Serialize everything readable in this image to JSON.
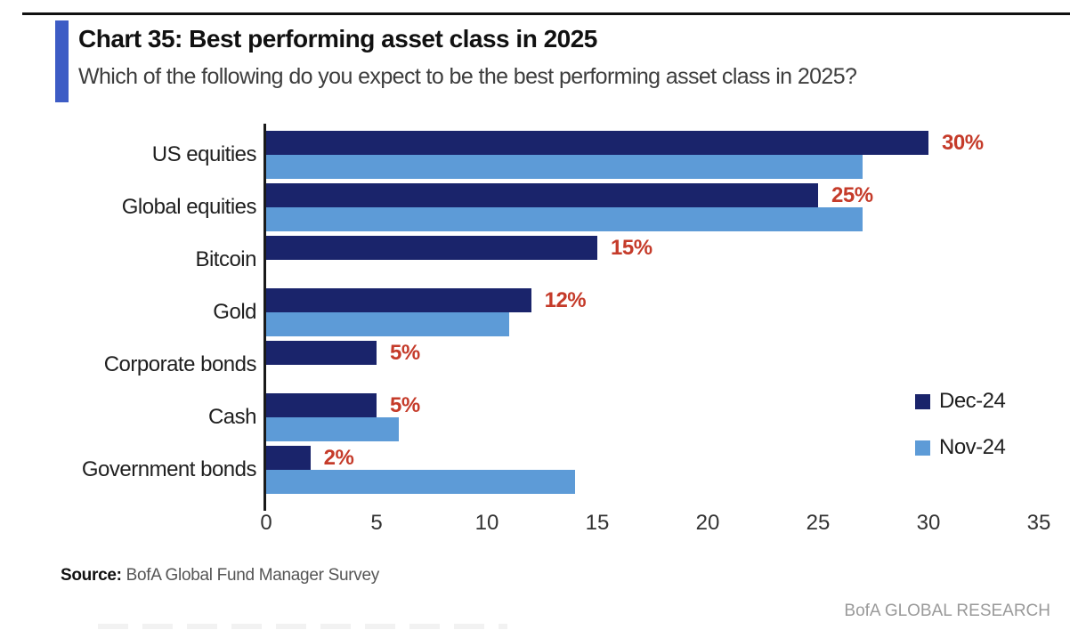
{
  "header": {
    "title": "Chart 35: Best performing asset class in 2025",
    "subtitle": "Which of the following do you expect to be the best performing asset class in 2025?"
  },
  "chart_data": {
    "type": "bar",
    "orientation": "horizontal",
    "title": "Chart 35: Best performing asset class in 2025",
    "categories": [
      "US equities",
      "Global equities",
      "Bitcoin",
      "Gold",
      "Corporate bonds",
      "Cash",
      "Government bonds"
    ],
    "series": [
      {
        "name": "Dec-24",
        "color": "#1a246b",
        "values": [
          30,
          25,
          15,
          12,
          5,
          5,
          2
        ],
        "data_labels": [
          "30%",
          "25%",
          "15%",
          "12%",
          "5%",
          "5%",
          "2%"
        ]
      },
      {
        "name": "Nov-24",
        "color": "#5d9bd7",
        "values": [
          27,
          27,
          null,
          11,
          null,
          6,
          14
        ],
        "data_labels": null
      }
    ],
    "xlim": [
      0,
      35
    ],
    "xticks": [
      0,
      5,
      10,
      15,
      20,
      25,
      30,
      35
    ],
    "data_label_color": "#c53b2a",
    "legend_position": "right-middle",
    "grid": false
  },
  "footer": {
    "source_label": "Source:",
    "source_text": " BofA Global Fund Manager Survey",
    "brand": "BofA GLOBAL RESEARCH"
  },
  "accent_color": "#3d5cc5"
}
